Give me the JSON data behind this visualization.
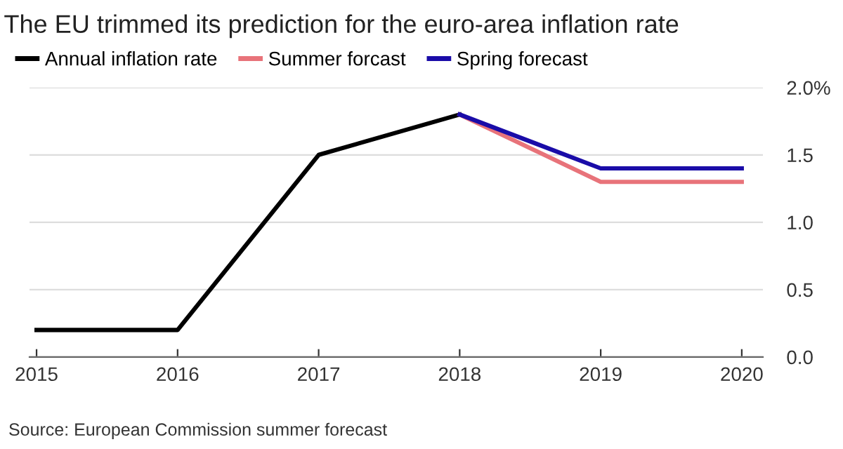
{
  "chart_data": {
    "type": "line",
    "title": "The EU trimmed its prediction for the euro-area inflation rate",
    "series": [
      {
        "name": "Annual inflation rate",
        "color": "#000000",
        "x": [
          2015,
          2016,
          2017,
          2018
        ],
        "values": [
          0.2,
          0.2,
          1.5,
          1.8
        ]
      },
      {
        "name": "Summer forcast",
        "color": "#e8737a",
        "x": [
          2018,
          2019,
          2020
        ],
        "values": [
          1.8,
          1.3,
          1.3
        ]
      },
      {
        "name": "Spring forecast",
        "color": "#1a0ca8",
        "x": [
          2018,
          2019,
          2020
        ],
        "values": [
          1.8,
          1.4,
          1.4
        ]
      }
    ],
    "xlim": [
      2014.95,
      2020.15
    ],
    "xticks": [
      2015,
      2016,
      2017,
      2018,
      2019,
      2020
    ],
    "ylim": [
      0,
      2.0
    ],
    "yticks": [
      {
        "value": 0,
        "label": "0.0"
      },
      0.5,
      {
        "value": 1,
        "label": "1.0"
      },
      1.5,
      {
        "value": 2,
        "label": "2.0%"
      }
    ],
    "grid": "y",
    "legend": "top left",
    "marker": "none",
    "line_style": "solid",
    "annotations": [
      "Source: European Commission summer forecast"
    ]
  }
}
